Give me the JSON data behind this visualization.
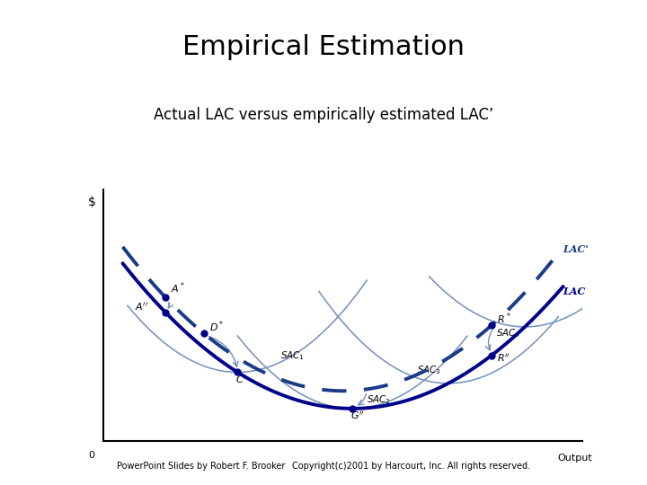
{
  "title": "Empirical Estimation",
  "subtitle": "Actual LAC versus empirically estimated LAC’",
  "footer_left": "PowerPoint Slides by Robert F. Brooker",
  "footer_right": "Copyright(c)2001 by Harcourt, Inc. All rights reserved.",
  "bg_color": "#ffffff",
  "dark_blue": "#00008B",
  "dashed_blue": "#1a3a8a",
  "light_blue_thin": "#7090bb",
  "title_fontsize": 22,
  "subtitle_fontsize": 12,
  "footer_fontsize": 7
}
